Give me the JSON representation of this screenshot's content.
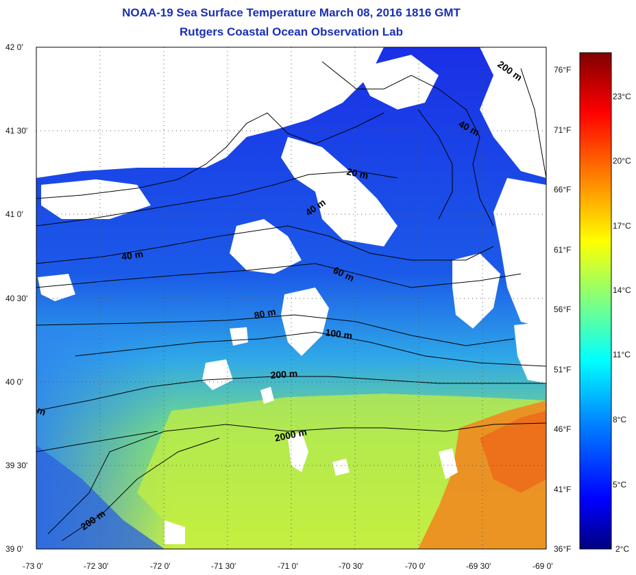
{
  "title": "NOAA-19 Sea Surface Temperature March 08, 2016 1816 GMT",
  "subtitle": "Rutgers Coastal Ocean Observation Lab",
  "lat_labels": [
    "42 0'",
    "41 30'",
    "41 0'",
    "40 30'",
    "40 0'",
    "39 30'",
    "39 0'"
  ],
  "lon_labels": [
    "-73 0'",
    "-72 30'",
    "-72 0'",
    "-71 30'",
    "-71 0'",
    "-70 30'",
    "-70 0'",
    "-69 30'",
    "-69 0'"
  ],
  "colorbar": {
    "fahrenheit": [
      "76°F",
      "71°F",
      "66°F",
      "61°F",
      "56°F",
      "51°F",
      "46°F",
      "41°F",
      "36°F"
    ],
    "celsius": [
      "23°C",
      "20°C",
      "17°C",
      "14°C",
      "11°C",
      "8°C",
      "5°C",
      "2°C"
    ],
    "colors": [
      "#000080",
      "#0000ff",
      "#0080ff",
      "#00ffff",
      "#80ff80",
      "#ffff00",
      "#ff8000",
      "#ff0000",
      "#800000"
    ]
  },
  "contour_labels": [
    "200 m",
    "40 m",
    "20 m",
    "40 m",
    "40 m",
    "60 m",
    "80 m",
    "100 m",
    "200 m",
    "2000 m",
    "200 m",
    "m"
  ]
}
